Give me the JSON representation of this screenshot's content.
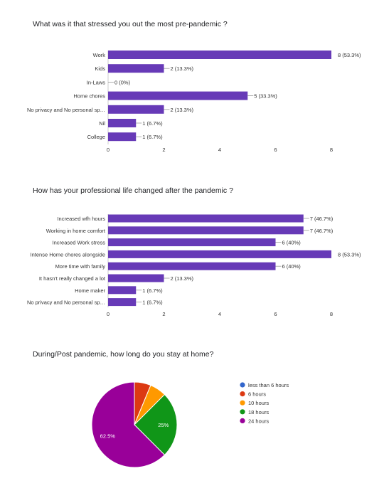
{
  "questions": {
    "q1": "What was it that stressed you out the most pre-pandemic ?",
    "q2": "How has your professional life changed after the pandemic ?",
    "q3": "During/Post pandemic, how long do you stay at home?"
  },
  "colors": {
    "bar": "#673ab7",
    "axis": "#cccccc",
    "text": "#333333"
  },
  "chart_data": [
    {
      "type": "bar",
      "orientation": "horizontal",
      "title": "What was it that stressed you out the most pre-pandemic ?",
      "categories": [
        "Work",
        "Kids",
        "In-Laws",
        "Home chores",
        "No privacy and No personal sp…",
        "Nil",
        "College"
      ],
      "values": [
        8,
        2,
        0,
        5,
        2,
        1,
        1
      ],
      "labels": [
        "8 (53.3%)",
        "2 (13.3%)",
        "0 (0%)",
        "5 (33.3%)",
        "2 (13.3%)",
        "1 (6.7%)",
        "1 (6.7%)"
      ],
      "xticks": [
        "0",
        "2",
        "4",
        "6",
        "8"
      ],
      "xlim": [
        0,
        8
      ],
      "grid": false
    },
    {
      "type": "bar",
      "orientation": "horizontal",
      "title": "How has your professional life changed after the pandemic ?",
      "categories": [
        "Increased wfh hours",
        "Working in home comfort",
        "Increased Work stress",
        "Intense Home chores alongside",
        "More time with family",
        "It hasn't really changed a lot",
        "Home maker",
        "No privacy and No personal sp…"
      ],
      "values": [
        7,
        7,
        6,
        8,
        6,
        2,
        1,
        1
      ],
      "labels": [
        "7 (46.7%)",
        "7 (46.7%)",
        "6 (40%)",
        "8 (53.3%)",
        "6 (40%)",
        "2 (13.3%)",
        "1 (6.7%)",
        "1 (6.7%)"
      ],
      "xticks": [
        "0",
        "2",
        "4",
        "6",
        "8"
      ],
      "xlim": [
        0,
        8
      ],
      "grid": false
    },
    {
      "type": "pie",
      "title": "During/Post pandemic, how long do you stay at home?",
      "categories": [
        "less than 6 hours",
        "6 hours",
        "10 hours",
        "18 hours",
        "24 hours"
      ],
      "values": [
        0,
        6.25,
        6.25,
        25,
        62.5
      ],
      "colors": [
        "#3366cc",
        "#dc3912",
        "#ff9900",
        "#109618",
        "#990099"
      ],
      "slice_labels": [
        "",
        "",
        "",
        "25%",
        "62.5%"
      ],
      "legend": "right"
    }
  ]
}
